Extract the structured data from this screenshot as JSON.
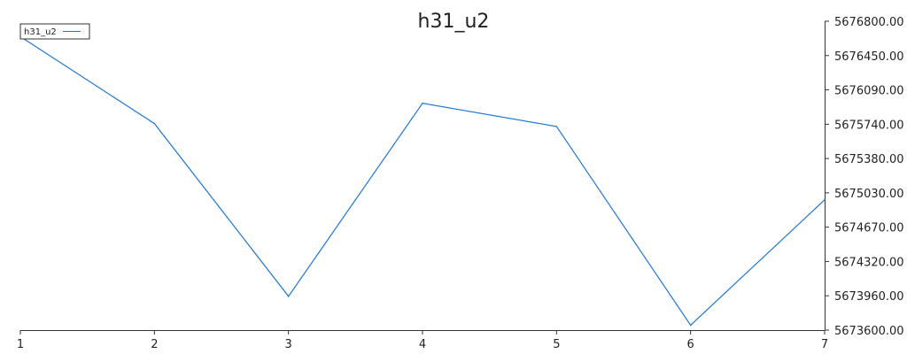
{
  "chart_data": {
    "type": "line",
    "title": "h31_u2",
    "xlabel": "",
    "ylabel": "",
    "x": [
      1,
      2,
      3,
      4,
      5,
      6,
      7
    ],
    "xlim": [
      1,
      7
    ],
    "ylim": [
      5673600,
      5676800
    ],
    "x_ticks": [
      "1",
      "2",
      "3",
      "4",
      "5",
      "6",
      "7"
    ],
    "y_ticks": [
      "5673600.00",
      "5673960.00",
      "5674320.00",
      "5674670.00",
      "5675030.00",
      "5675380.00",
      "5675740.00",
      "5676090.00",
      "5676450.00",
      "5676800.00"
    ],
    "y_axis_position": "right",
    "grid": false,
    "legend_position": "top-left",
    "series": [
      {
        "name": "h31_u2",
        "color": "#1f77d4",
        "values": [
          5676640,
          5675740,
          5673950,
          5675950,
          5675710,
          5673650,
          5674950
        ]
      }
    ]
  }
}
